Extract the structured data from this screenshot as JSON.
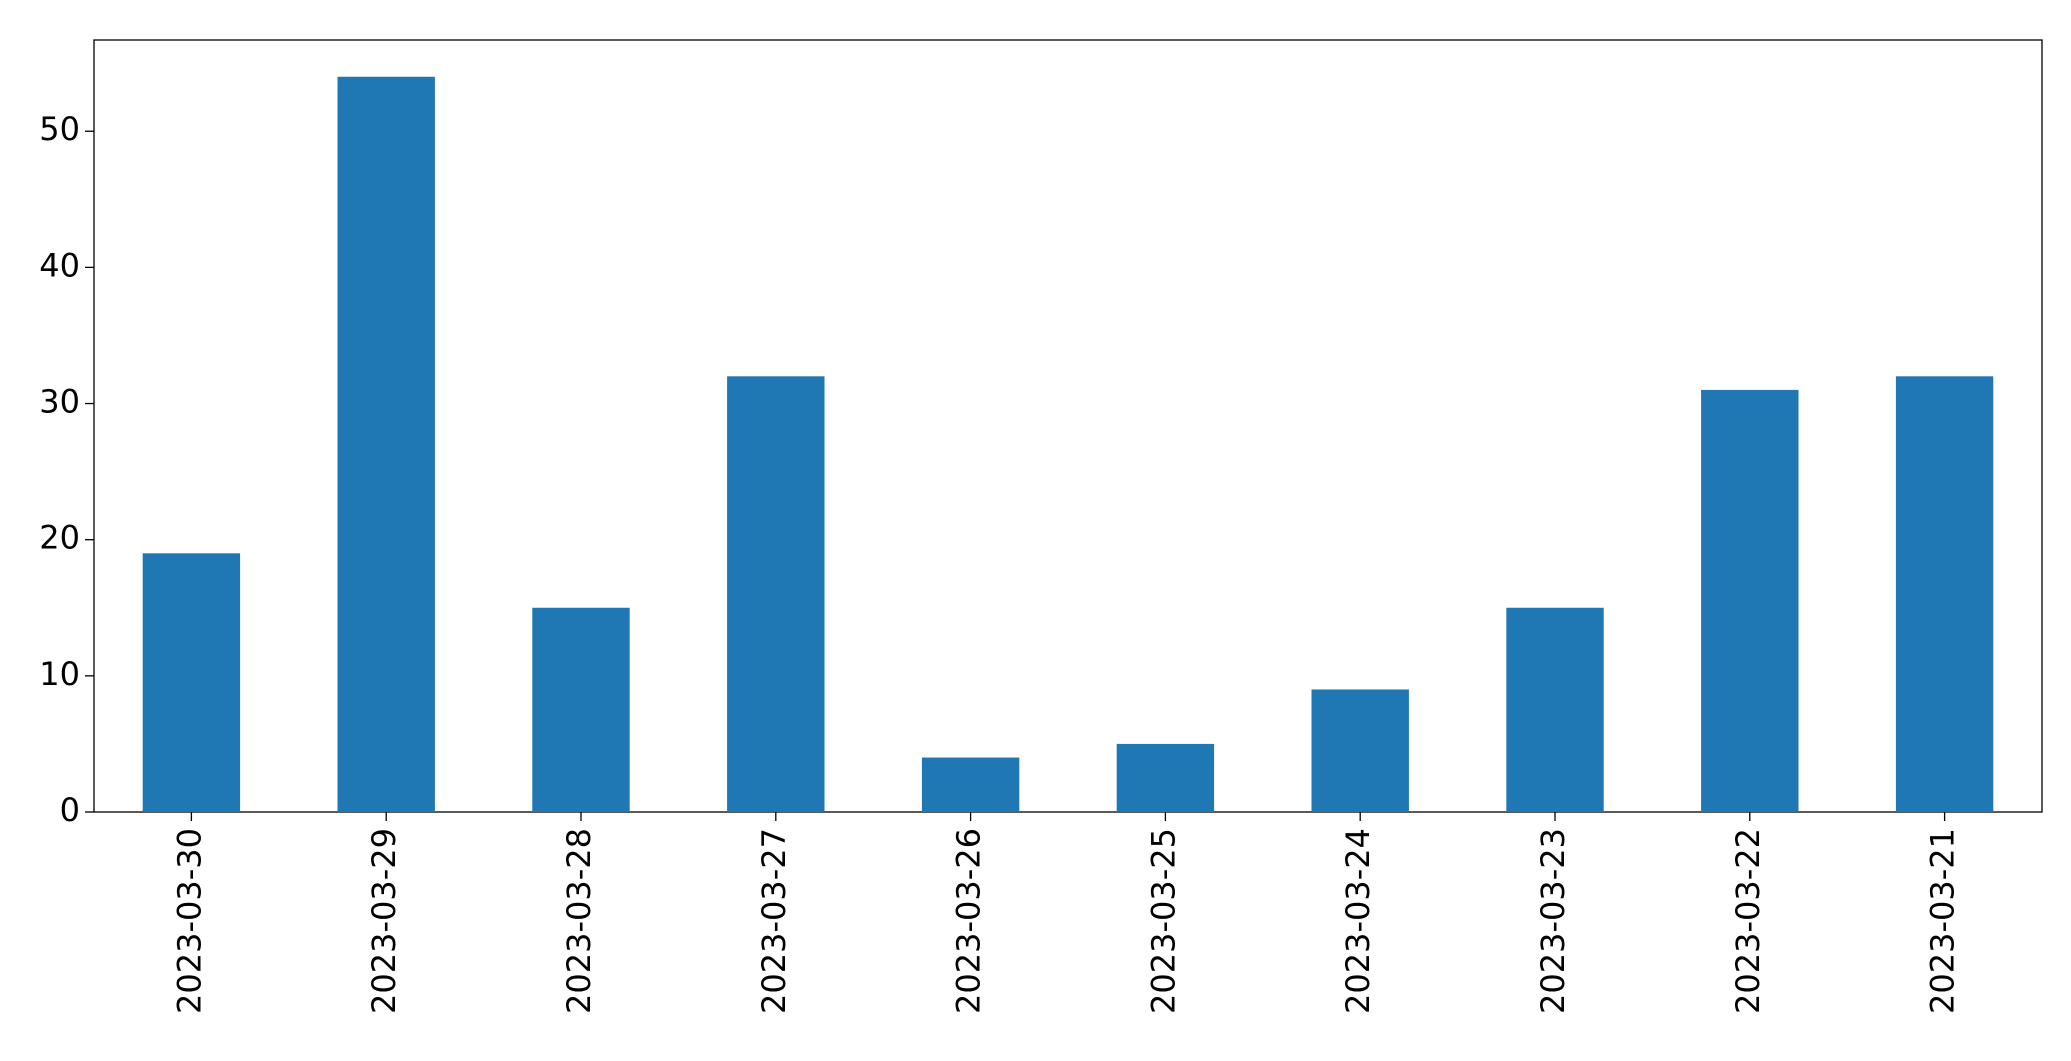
{
  "chart_data": {
    "type": "bar",
    "categories": [
      "2023-03-30",
      "2023-03-29",
      "2023-03-28",
      "2023-03-27",
      "2023-03-26",
      "2023-03-25",
      "2023-03-24",
      "2023-03-23",
      "2023-03-22",
      "2023-03-21"
    ],
    "values": [
      19,
      54,
      15,
      32,
      4,
      5,
      9,
      15,
      31,
      32
    ],
    "color": "#1f77b4",
    "ylim": [
      0,
      56.7
    ],
    "yticks": [
      0,
      10,
      20,
      30,
      40,
      50
    ],
    "grid": false
  }
}
